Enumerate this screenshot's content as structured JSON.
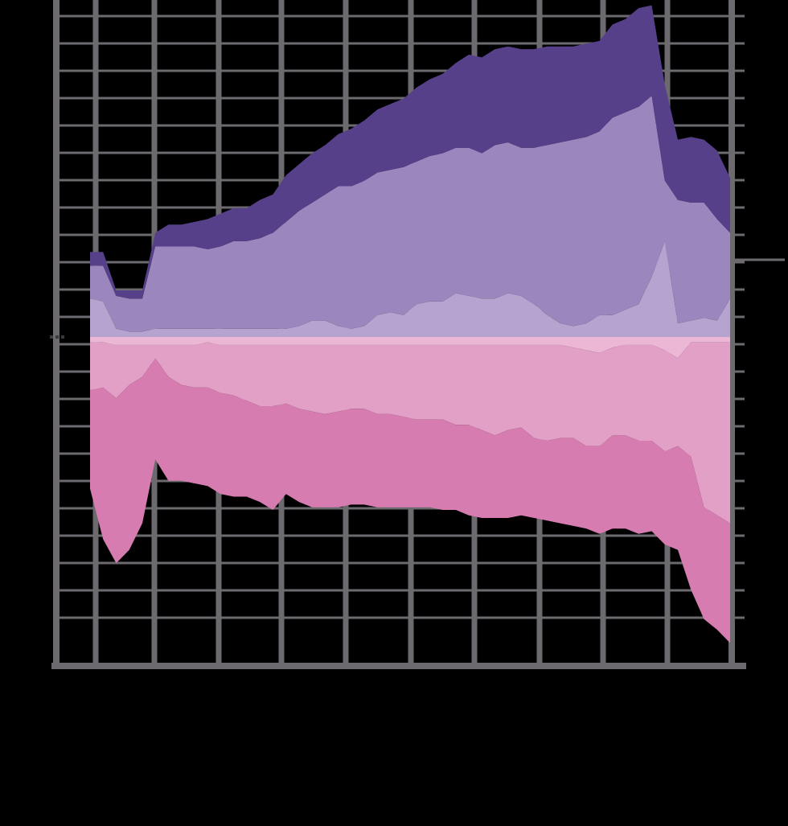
{
  "chart_data": {
    "type": "area",
    "title": "",
    "xlabel": "",
    "ylabel": "",
    "grid": true,
    "legend": "none",
    "x": [
      0,
      1,
      2,
      3,
      4,
      5,
      6,
      7,
      8,
      9,
      10,
      11,
      12,
      13,
      14,
      15,
      16,
      17,
      18,
      19,
      20,
      21,
      22,
      23,
      24,
      25,
      26,
      27,
      28,
      29,
      30,
      31,
      32,
      33,
      34,
      35,
      36,
      37,
      38,
      39,
      40,
      41,
      42,
      43,
      44,
      45,
      46,
      47,
      48,
      49
    ],
    "xlim": [
      0,
      49
    ],
    "ylim": [
      -12,
      12
    ],
    "colors": {
      "background": "#000000",
      "grid": "#6c6a6e",
      "purple_dark": "#56408a",
      "purple_mid": "#9b86bd",
      "purple_light": "#b6a3cf",
      "pink_light": "#ecb7d4",
      "pink_mid": "#e3a0c7",
      "pink_dark": "#d67cb0"
    },
    "series": [
      {
        "group": "positive",
        "color": "#b6a3cf",
        "values": [
          1.4,
          1.3,
          0.3,
          0.2,
          0.2,
          0.3,
          0.3,
          0.3,
          0.3,
          0.3,
          0.3,
          0.3,
          0.3,
          0.3,
          0.3,
          0.3,
          0.4,
          0.6,
          0.6,
          0.4,
          0.3,
          0.4,
          0.8,
          0.9,
          0.8,
          1.2,
          1.3,
          1.3,
          1.6,
          1.5,
          1.4,
          1.4,
          1.6,
          1.5,
          1.2,
          0.8,
          0.5,
          0.4,
          0.5,
          0.8,
          0.8,
          1.0,
          1.2,
          2.2,
          3.5,
          0.5,
          0.6,
          0.7,
          0.6,
          1.4
        ]
      },
      {
        "group": "positive",
        "color": "#9b86bd",
        "values": [
          1.2,
          1.3,
          1.2,
          1.2,
          1.2,
          3.0,
          3.0,
          3.0,
          3.0,
          2.9,
          3.0,
          3.2,
          3.2,
          3.3,
          3.5,
          3.9,
          4.2,
          4.3,
          4.6,
          5.1,
          5.2,
          5.3,
          5.2,
          5.2,
          5.4,
          5.2,
          5.3,
          5.4,
          5.3,
          5.4,
          5.3,
          5.6,
          5.5,
          5.4,
          5.7,
          6.2,
          6.6,
          6.8,
          6.8,
          6.7,
          7.2,
          7.2,
          7.2,
          6.6,
          2.2,
          4.5,
          4.3,
          4.2,
          3.7,
          2.4
        ]
      },
      {
        "group": "positive",
        "color": "#56408a",
        "values": [
          0.5,
          0.5,
          0.2,
          0.3,
          0.3,
          0.5,
          0.8,
          0.8,
          0.9,
          1.1,
          1.2,
          1.2,
          1.2,
          1.4,
          1.4,
          1.7,
          1.7,
          1.8,
          1.8,
          1.9,
          2.1,
          2.2,
          2.3,
          2.4,
          2.5,
          2.7,
          2.8,
          2.9,
          3.1,
          3.4,
          3.5,
          3.5,
          3.5,
          3.6,
          3.6,
          3.6,
          3.5,
          3.4,
          3.4,
          3.3,
          3.4,
          3.4,
          3.6,
          3.3,
          3.5,
          2.2,
          2.4,
          2.3,
          2.5,
          2.0
        ]
      },
      {
        "group": "negative",
        "color": "#ecb7d4",
        "values": [
          -0.2,
          -0.2,
          -0.3,
          -0.3,
          -0.3,
          -0.3,
          -0.3,
          -0.3,
          -0.3,
          -0.2,
          -0.3,
          -0.3,
          -0.3,
          -0.3,
          -0.3,
          -0.3,
          -0.3,
          -0.3,
          -0.3,
          -0.3,
          -0.3,
          -0.3,
          -0.3,
          -0.3,
          -0.3,
          -0.3,
          -0.3,
          -0.3,
          -0.3,
          -0.3,
          -0.3,
          -0.3,
          -0.3,
          -0.3,
          -0.3,
          -0.3,
          -0.3,
          -0.4,
          -0.5,
          -0.6,
          -0.4,
          -0.3,
          -0.3,
          -0.3,
          -0.5,
          -0.8,
          -0.2,
          -0.2,
          -0.2,
          -0.2
        ]
      },
      {
        "group": "negative",
        "color": "#e3a0c7",
        "values": [
          -1.8,
          -1.7,
          -2.0,
          -1.5,
          -1.2,
          -0.5,
          -1.2,
          -1.5,
          -1.6,
          -1.7,
          -1.8,
          -1.9,
          -2.1,
          -2.3,
          -2.3,
          -2.2,
          -2.4,
          -2.5,
          -2.6,
          -2.5,
          -2.4,
          -2.4,
          -2.6,
          -2.6,
          -2.7,
          -2.8,
          -2.8,
          -2.8,
          -3.0,
          -3.0,
          -3.2,
          -3.4,
          -3.2,
          -3.1,
          -3.5,
          -3.6,
          -3.5,
          -3.4,
          -3.6,
          -3.5,
          -3.3,
          -3.4,
          -3.6,
          -3.6,
          -3.8,
          -3.3,
          -4.3,
          -6.2,
          -6.5,
          -6.8
        ]
      },
      {
        "group": "negative",
        "color": "#d67cb0",
        "values": [
          -3.7,
          -5.7,
          -6.2,
          -6.2,
          -5.5,
          -3.8,
          -3.9,
          -3.6,
          -3.6,
          -3.7,
          -3.8,
          -3.8,
          -3.6,
          -3.6,
          -3.9,
          -3.4,
          -3.5,
          -3.6,
          -3.5,
          -3.6,
          -3.6,
          -3.6,
          -3.5,
          -3.5,
          -3.4,
          -3.3,
          -3.3,
          -3.4,
          -3.2,
          -3.4,
          -3.3,
          -3.1,
          -3.3,
          -3.3,
          -3.0,
          -3.0,
          -3.2,
          -3.3,
          -3.1,
          -3.3,
          -3.5,
          -3.5,
          -3.5,
          -3.4,
          -3.5,
          -3.9,
          -5.0,
          -4.2,
          -4.3,
          -4.5
        ]
      }
    ]
  }
}
